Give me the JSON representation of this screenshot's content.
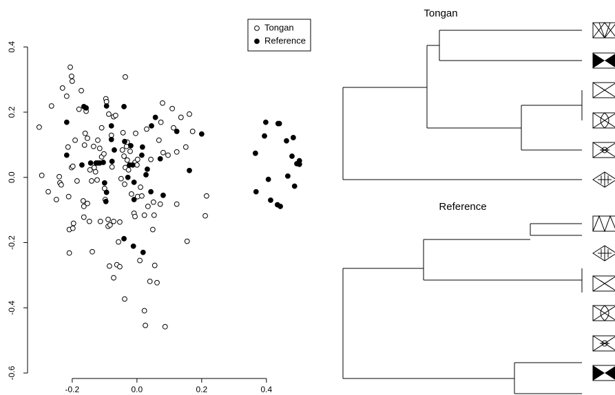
{
  "chart_data": {
    "type": "scatter",
    "series": [
      {
        "name": "Tongan",
        "color": "#000000",
        "marker": "open",
        "x": [
          -0.302,
          -0.294,
          -0.274,
          -0.264,
          -0.249,
          -0.24,
          -0.238,
          -0.234,
          -0.23,
          -0.217,
          -0.213,
          -0.211,
          -0.209,
          -0.209,
          -0.206,
          -0.202,
          -0.202,
          -0.2,
          -0.198,
          -0.198,
          -0.196,
          -0.191,
          -0.185,
          -0.179,
          -0.172,
          -0.166,
          -0.164,
          -0.164,
          -0.162,
          -0.16,
          -0.157,
          -0.153,
          -0.153,
          -0.147,
          -0.145,
          -0.14,
          -0.138,
          -0.134,
          -0.132,
          -0.128,
          -0.123,
          -0.121,
          -0.115,
          -0.113,
          -0.109,
          -0.109,
          -0.102,
          -0.1,
          -0.098,
          -0.096,
          -0.094,
          -0.089,
          -0.089,
          -0.087,
          -0.085,
          -0.083,
          -0.079,
          -0.077,
          -0.072,
          -0.072,
          -0.072,
          -0.066,
          -0.062,
          -0.057,
          -0.053,
          -0.053,
          -0.049,
          -0.045,
          -0.043,
          -0.04,
          -0.038,
          -0.036,
          -0.036,
          -0.038,
          -0.032,
          -0.03,
          -0.03,
          -0.026,
          -0.021,
          -0.017,
          -0.009,
          -0.006,
          -0.006,
          -0.004,
          0.0,
          0.002,
          0.002,
          0.009,
          0.011,
          0.015,
          0.023,
          0.023,
          0.026,
          0.03,
          0.034,
          0.04,
          0.043,
          0.049,
          0.051,
          0.053,
          0.055,
          0.062,
          0.068,
          0.072,
          0.074,
          0.079,
          0.081,
          0.087,
          0.096,
          0.109,
          0.113,
          0.123,
          0.123,
          0.136,
          0.151,
          0.155,
          0.162,
          0.172,
          0.215,
          0.211
        ],
        "values": [
          0.154,
          0.006,
          -0.044,
          0.219,
          -0.068,
          0.002,
          -0.017,
          -0.023,
          0.274,
          0.249,
          0.093,
          -0.059,
          -0.16,
          -0.232,
          0.338,
          0.03,
          0.31,
          0.295,
          -0.156,
          0.034,
          -0.141,
          0.114,
          -0.011,
          0.209,
          0.266,
          -0.072,
          -0.089,
          -0.122,
          0.099,
          0.135,
          0.203,
          0.12,
          -0.08,
          -0.135,
          0.023,
          -0.011,
          -0.228,
          0.095,
          0.03,
          0.017,
          -0.008,
          0.114,
          0.089,
          -0.135,
          0.152,
          0.063,
          0.072,
          -0.034,
          -0.068,
          0.241,
          0.232,
          -0.129,
          -0.15,
          0.194,
          -0.272,
          -0.146,
          0.129,
          0.032,
          -0.308,
          -0.135,
          0.186,
          0.19,
          -0.268,
          -0.198,
          -0.274,
          -0.137,
          -0.004,
          0.084,
          0.137,
          0.065,
          -0.021,
          0.308,
          0.03,
          -0.373,
          0.095,
          0.053,
          0.108,
          0.023,
          0.08,
          -0.051,
          -0.11,
          -0.12,
          0.046,
          0.135,
          0.038,
          0.055,
          -0.059,
          -0.255,
          -0.03,
          -0.057,
          -0.116,
          -0.409,
          -0.454,
          0.148,
          -0.089,
          -0.319,
          0.055,
          -0.16,
          -0.076,
          -0.116,
          -0.27,
          -0.323,
          0.114,
          -0.082,
          0.169,
          0.228,
          0.076,
          -0.458,
          0.068,
          0.211,
          0.152,
          0.078,
          -0.082,
          0.184,
          0.093,
          -0.196,
          0.194,
          0.141,
          -0.057,
          -0.118
        ]
      },
      {
        "name": "Reference",
        "color": "#000000",
        "marker": "filled",
        "x": [
          -0.164,
          -0.157,
          -0.217,
          -0.217,
          -0.17,
          -0.143,
          -0.121,
          -0.094,
          -0.079,
          -0.079,
          -0.07,
          -0.1,
          -0.094,
          -0.096,
          -0.115,
          -0.04,
          -0.038,
          -0.023,
          -0.013,
          -0.019,
          -0.028,
          -0.009,
          -0.009,
          0.015,
          0.017,
          0.028,
          0.043,
          0.045,
          0.032,
          0.072,
          0.081,
          0.057,
          0.123,
          0.162,
          0.2,
          -0.011,
          -0.04,
          0.019,
          0.366,
          0.398,
          0.394,
          0.406,
          0.368,
          0.413,
          0.434,
          0.443,
          0.44,
          0.462,
          0.483,
          0.436,
          0.466,
          0.479,
          0.487,
          0.494,
          0.502,
          0.502,
          -0.077,
          -0.104,
          -0.126
        ],
        "values": [
          0.217,
          0.213,
          0.169,
          0.068,
          0.038,
          0.044,
          0.044,
          0.219,
          0.158,
          0.116,
          0.084,
          -0.017,
          -0.046,
          -0.074,
          0.044,
          0.217,
          0.11,
          0.038,
          0.038,
          0.097,
          0.0,
          -0.015,
          -0.068,
          0.068,
          0.093,
          0.008,
          -0.044,
          0.158,
          0.025,
          0.057,
          -0.055,
          0.184,
          0.141,
          0.021,
          0.133,
          -0.211,
          -0.188,
          -0.23,
          0.074,
          0.169,
          0.127,
          -0.006,
          -0.044,
          -0.07,
          -0.084,
          -0.089,
          0.165,
          0.112,
          0.122,
          0.165,
          0.004,
          0.065,
          -0.027,
          0.042,
          0.051,
          0.04,
          0.049,
          0.046,
          0.044
        ]
      }
    ],
    "xlim": [
      -0.338,
      0.545
    ],
    "ylim": [
      -0.64,
      0.43
    ],
    "xticks": [
      -0.2,
      {
        "value": 0,
        "label": "0.0"
      },
      0.2,
      0.4
    ],
    "yticks": [
      -0.6,
      -0.4,
      -0.2,
      {
        "value": 0,
        "label": "0.0"
      },
      0.2,
      0.4
    ],
    "legend": "top-right"
  },
  "dendrograms": [
    {
      "title": "Tongan"
    },
    {
      "title": "Reference"
    }
  ]
}
